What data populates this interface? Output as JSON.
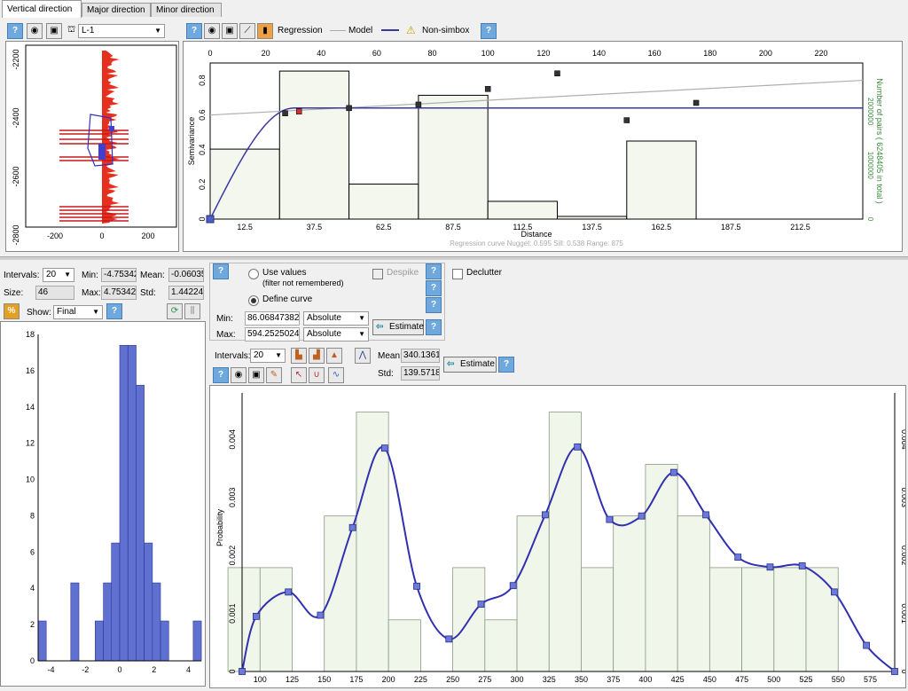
{
  "tabs": [
    "Vertical direction",
    "Major direction",
    "Minor direction"
  ],
  "well": {
    "selected": "L-1"
  },
  "legend": {
    "regression": "Regression",
    "model": "Model",
    "nonsimbox": "Non-simbox"
  },
  "icons": {
    "help": "question-icon",
    "eye": "eye-icon",
    "camera": "camera-icon",
    "warning": "warning-icon"
  },
  "well_plot": {
    "y_ticks": [
      "-2200",
      "-2400",
      "-2600",
      "-2800"
    ],
    "x_ticks": [
      "-200",
      "0",
      "200"
    ]
  },
  "vario": {
    "top_ticks": [
      "0",
      "20",
      "40",
      "60",
      "80",
      "100",
      "120",
      "140",
      "160",
      "180",
      "200",
      "220"
    ],
    "bottom_ticks": [
      "12.5",
      "37.5",
      "62.5",
      "87.5",
      "112.5",
      "137.5",
      "162.5",
      "187.5",
      "212.5"
    ],
    "y_ticks": [
      "0",
      "0.2",
      "0.4",
      "0.6",
      "0.8"
    ],
    "ylabel": "Semivariance",
    "xlabel": "Distance",
    "right_label": "Number of pairs  ( 6248405 in total )",
    "right_ticks": [
      "0",
      "1000000",
      "2000000"
    ],
    "footnote": "Regression curve    Nugget: 0.595    Sill: 0.538    Range: 875"
  },
  "stats_left": {
    "intervals_label": "Intervals:",
    "intervals": "20",
    "min_label": "Min:",
    "min": "-4.75342",
    "mean_label": "Mean:",
    "mean": "-0.06035",
    "size_label": "Size:",
    "size": "46",
    "max_label": "Max:",
    "max": "4.75342",
    "std_label": "Std:",
    "std": "1.44224",
    "show_label": "Show:",
    "show": "Final"
  },
  "hist_left": {
    "y_ticks": [
      "0",
      "2",
      "4",
      "6",
      "8",
      "10",
      "12",
      "14",
      "16",
      "18"
    ],
    "x_ticks": [
      "-4",
      "-2",
      "0",
      "2",
      "4"
    ]
  },
  "curve_opts": {
    "use_values": "Use values",
    "filter_note": "(filter not remembered)",
    "define_curve": "Define curve",
    "despike": "Despike",
    "decluster": "Declutter",
    "min_label": "Min:",
    "min": "86.06847382",
    "max_label": "Max:",
    "max": "594.2525024",
    "min_mode": "Absolute",
    "max_mode": "Absolute",
    "estimate": "Estimate"
  },
  "dist": {
    "intervals_label": "Intervals:",
    "intervals": "20",
    "mean_label": "Mean:",
    "mean": "340.1361",
    "std_label": "Std:",
    "std": "139.5718",
    "estimate": "Estimate",
    "ylabel": "Probability",
    "y_ticks": [
      "0",
      "0.001",
      "0.002",
      "0.003",
      "0.004"
    ],
    "x_ticks": [
      "100",
      "125",
      "150",
      "175",
      "200",
      "225",
      "250",
      "275",
      "300",
      "325",
      "350",
      "375",
      "400",
      "425",
      "450",
      "475",
      "500",
      "525",
      "550",
      "575"
    ]
  },
  "chart_data": [
    {
      "type": "bar",
      "name": "variogram",
      "x_bin_centers": [
        12.5,
        37.5,
        62.5,
        87.5,
        112.5,
        137.5,
        162.5,
        187.5
      ],
      "pair_counts": [
        1300000,
        2750000,
        650000,
        2300000,
        330000,
        50000,
        1450000,
        0
      ],
      "experimental_points": [
        [
          27,
          0.61
        ],
        [
          32,
          0.62
        ],
        [
          50,
          0.64
        ],
        [
          75,
          0.66
        ],
        [
          100,
          0.75
        ],
        [
          125,
          0.84
        ],
        [
          150,
          0.57
        ],
        [
          175,
          0.67
        ]
      ],
      "model_sill": 0.64,
      "model_range": 30,
      "regression": [
        [
          0,
          0.6
        ],
        [
          235,
          0.8
        ]
      ],
      "xlim": [
        0,
        235
      ],
      "ylim": [
        0,
        0.9
      ]
    },
    {
      "type": "bar",
      "name": "residual-histogram",
      "bins": [
        -4.75,
        -4.28,
        -3.8,
        -3.33,
        -2.85,
        -2.38,
        -1.9,
        -1.43,
        -0.95,
        -0.48,
        0,
        0.48,
        0.95,
        1.43,
        1.9,
        2.38,
        2.85,
        3.33,
        3.8,
        4.28
      ],
      "counts": [
        2.2,
        0,
        0,
        0,
        4.3,
        0,
        0,
        2.2,
        4.3,
        6.5,
        17.4,
        17.4,
        15.2,
        6.5,
        4.3,
        2.2,
        0,
        0,
        0,
        2.2
      ],
      "xlim": [
        -4.75,
        4.75
      ],
      "ylim": [
        0,
        18
      ]
    },
    {
      "type": "bar",
      "name": "probability-distribution",
      "bins": [
        87.5,
        112.5,
        137.5,
        162.5,
        187.5,
        212.5,
        237.5,
        262.5,
        287.5,
        312.5,
        337.5,
        362.5,
        387.5,
        412.5,
        437.5,
        462.5,
        487.5,
        512.5,
        537.5,
        562.5
      ],
      "probability": [
        0.00179,
        0.00179,
        0,
        0.00268,
        0.00447,
        0.00089,
        0,
        0.00179,
        0.00089,
        0.00268,
        0.00447,
        0.00179,
        0.00268,
        0.00357,
        0.00268,
        0.00179,
        0.00179,
        0.00179,
        0.00179,
        0
      ],
      "curve": [
        [
          86,
          0
        ],
        [
          97,
          0.00095
        ],
        [
          122,
          0.00137
        ],
        [
          147,
          0.00097
        ],
        [
          172,
          0.00248
        ],
        [
          197,
          0.00385
        ],
        [
          222,
          0.00147
        ],
        [
          247,
          0.00056
        ],
        [
          272,
          0.00116
        ],
        [
          297,
          0.00148
        ],
        [
          322,
          0.0027
        ],
        [
          347,
          0.00387
        ],
        [
          372,
          0.00262
        ],
        [
          397,
          0.00268
        ],
        [
          422,
          0.00343
        ],
        [
          447,
          0.0027
        ],
        [
          472,
          0.00197
        ],
        [
          497,
          0.0018
        ],
        [
          522,
          0.00182
        ],
        [
          547,
          0.00137
        ],
        [
          572,
          0.00045
        ],
        [
          594,
          0
        ]
      ],
      "xlim": [
        86,
        594
      ],
      "ylim": [
        0,
        0.0048
      ]
    }
  ]
}
